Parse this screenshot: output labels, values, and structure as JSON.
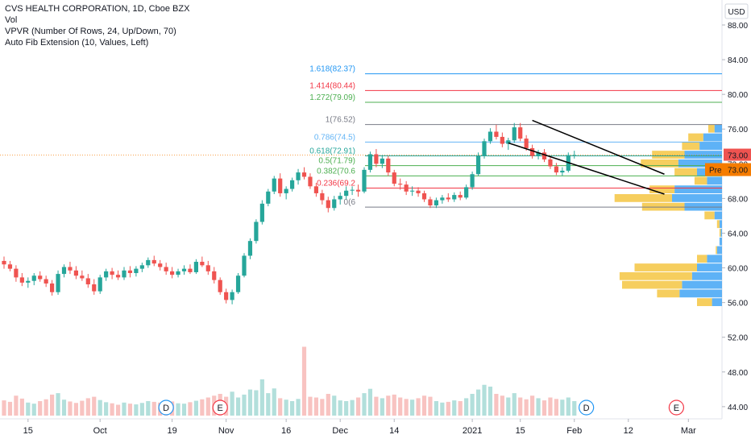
{
  "header": {
    "title": "CVS HEALTH CORPORATION, 1D, Cboe BZX",
    "indicators": [
      "Vol",
      "VPVR (Number Of Rows, 24, Up/Down, 70)",
      "Auto Fib Extension (10, Values, Left)"
    ]
  },
  "currency": "USD",
  "price_tags": {
    "last": "73.00",
    "pre_label": "Pre",
    "pre": "73.00"
  },
  "colors": {
    "up": "#26a69a",
    "down": "#ef5350",
    "vol_up": "#b2dfdb",
    "vol_down": "#f8c3c1",
    "vp_up": "#42a5f5",
    "vp_down": "#f5c542",
    "tag": "#f57c00"
  },
  "chart_data": {
    "type": "candlestick",
    "title": "CVS HEALTH CORPORATION, 1D, Cboe BZX",
    "ylim": [
      43,
      90
    ],
    "y_ticks": [
      "44.00",
      "48.00",
      "52.00",
      "56.00",
      "60.00",
      "64.00",
      "68.00",
      "72.00",
      "76.00",
      "80.00",
      "84.00",
      "88.00"
    ],
    "x_ticks": [
      "15",
      "Oct",
      "19",
      "Nov",
      "16",
      "Dec",
      "14",
      "2021",
      "15",
      "Feb",
      "12",
      "Mar"
    ],
    "fib_levels": [
      {
        "label": "1.618(82.37)",
        "value": 82.37,
        "color": "#2196f3"
      },
      {
        "label": "1.414(80.44)",
        "value": 80.44,
        "color": "#f23645"
      },
      {
        "label": "1.272(79.09)",
        "value": 79.09,
        "color": "#4caf50"
      },
      {
        "label": "1(76.52)",
        "value": 76.52,
        "color": "#787b86"
      },
      {
        "label": "0.786(74.5)",
        "value": 74.5,
        "color": "#64b5f6"
      },
      {
        "label": "0.618(72.91)",
        "value": 72.91,
        "color": "#26a69a"
      },
      {
        "label": "0.5(71.79)",
        "value": 71.79,
        "color": "#4caf50"
      },
      {
        "label": "0.382(70.6",
        "value": 70.6,
        "color": "#4caf50"
      },
      {
        "label": "0.236(69.2",
        "value": 69.2,
        "color": "#f23645"
      },
      {
        "label": "0(6",
        "value": 67.0,
        "color": "#787b86"
      }
    ],
    "event_markers": [
      {
        "label": "D",
        "x_index": 27
      },
      {
        "label": "E",
        "x_index": 36
      },
      {
        "label": "D",
        "x_index": 97
      },
      {
        "label": "E",
        "x_index": 112
      }
    ],
    "candles": [
      [
        60.8,
        61.3,
        59.9,
        60.4
      ],
      [
        60.4,
        60.8,
        59.6,
        59.9
      ],
      [
        59.9,
        60.3,
        58.4,
        58.9
      ],
      [
        58.9,
        59.4,
        57.9,
        58.3
      ],
      [
        58.3,
        58.9,
        57.7,
        58.5
      ],
      [
        58.5,
        59.4,
        58.0,
        59.1
      ],
      [
        59.1,
        59.6,
        58.4,
        58.7
      ],
      [
        58.7,
        59.1,
        57.8,
        58.2
      ],
      [
        58.2,
        58.6,
        56.8,
        57.2
      ],
      [
        57.2,
        59.7,
        56.9,
        59.3
      ],
      [
        59.3,
        60.4,
        58.9,
        60.1
      ],
      [
        60.1,
        60.7,
        59.3,
        59.7
      ],
      [
        59.7,
        60.2,
        58.7,
        59.1
      ],
      [
        59.1,
        59.7,
        58.5,
        58.8
      ],
      [
        58.8,
        59.3,
        57.7,
        58.1
      ],
      [
        58.1,
        58.7,
        56.9,
        57.3
      ],
      [
        57.3,
        59.2,
        57.0,
        58.9
      ],
      [
        58.9,
        59.9,
        58.5,
        59.6
      ],
      [
        59.6,
        60.0,
        58.7,
        59.2
      ],
      [
        59.2,
        59.7,
        58.6,
        58.9
      ],
      [
        58.9,
        60.1,
        58.6,
        59.7
      ],
      [
        59.7,
        60.2,
        58.9,
        59.4
      ],
      [
        59.4,
        60.2,
        59.0,
        59.9
      ],
      [
        59.9,
        60.6,
        59.5,
        60.3
      ],
      [
        60.3,
        61.2,
        60.0,
        60.9
      ],
      [
        60.9,
        61.4,
        60.2,
        60.5
      ],
      [
        60.5,
        60.9,
        59.7,
        60.1
      ],
      [
        60.1,
        60.6,
        59.2,
        59.6
      ],
      [
        59.6,
        60.1,
        58.8,
        59.2
      ],
      [
        59.2,
        59.9,
        58.9,
        59.6
      ],
      [
        59.6,
        60.3,
        59.2,
        59.9
      ],
      [
        59.9,
        60.4,
        59.3,
        59.5
      ],
      [
        59.5,
        61.0,
        59.3,
        60.7
      ],
      [
        60.7,
        61.3,
        60.1,
        60.3
      ],
      [
        60.3,
        60.8,
        59.2,
        59.6
      ],
      [
        59.6,
        60.1,
        58.2,
        58.6
      ],
      [
        58.6,
        58.9,
        56.9,
        57.2
      ],
      [
        57.2,
        57.6,
        55.9,
        56.3
      ],
      [
        56.3,
        57.5,
        55.8,
        57.2
      ],
      [
        57.2,
        59.4,
        57.0,
        59.1
      ],
      [
        59.1,
        61.7,
        58.9,
        61.4
      ],
      [
        61.4,
        63.4,
        61.0,
        63.1
      ],
      [
        63.1,
        65.6,
        62.8,
        65.3
      ],
      [
        65.3,
        67.8,
        65.0,
        67.4
      ],
      [
        67.4,
        69.1,
        67.1,
        68.8
      ],
      [
        68.8,
        70.6,
        68.5,
        70.3
      ],
      [
        70.3,
        70.9,
        68.2,
        68.6
      ],
      [
        68.6,
        69.4,
        67.9,
        69.1
      ],
      [
        69.1,
        70.4,
        68.8,
        70.1
      ],
      [
        70.1,
        71.4,
        69.6,
        71.0
      ],
      [
        71.0,
        71.6,
        70.2,
        70.5
      ],
      [
        70.5,
        70.9,
        69.1,
        69.4
      ],
      [
        69.4,
        69.8,
        68.2,
        68.6
      ],
      [
        68.6,
        69.0,
        67.3,
        67.8
      ],
      [
        67.8,
        68.2,
        66.4,
        66.9
      ],
      [
        66.9,
        68.3,
        66.6,
        67.9
      ],
      [
        67.9,
        68.7,
        67.3,
        68.3
      ],
      [
        68.3,
        69.4,
        67.9,
        68.9
      ],
      [
        68.9,
        69.4,
        68.4,
        69.0
      ],
      [
        69.0,
        69.6,
        68.2,
        68.8
      ],
      [
        68.8,
        71.6,
        68.6,
        71.3
      ],
      [
        71.3,
        73.4,
        71.0,
        73.1
      ],
      [
        73.1,
        73.7,
        71.6,
        72.0
      ],
      [
        72.0,
        73.0,
        71.5,
        72.6
      ],
      [
        72.6,
        72.9,
        70.6,
        71.0
      ],
      [
        71.0,
        71.3,
        69.4,
        69.7
      ],
      [
        69.7,
        70.3,
        69.0,
        69.6
      ],
      [
        69.6,
        70.0,
        68.4,
        68.8
      ],
      [
        68.8,
        69.4,
        68.3,
        68.9
      ],
      [
        68.9,
        69.3,
        68.2,
        68.6
      ],
      [
        68.6,
        68.9,
        67.6,
        67.9
      ],
      [
        67.9,
        68.2,
        66.9,
        67.2
      ],
      [
        67.2,
        68.1,
        66.9,
        67.8
      ],
      [
        67.8,
        68.4,
        67.4,
        68.1
      ],
      [
        68.1,
        68.6,
        67.6,
        67.9
      ],
      [
        67.9,
        68.7,
        67.6,
        68.4
      ],
      [
        68.4,
        68.8,
        67.8,
        68.1
      ],
      [
        68.1,
        69.6,
        67.9,
        69.3
      ],
      [
        69.3,
        71.1,
        69.0,
        70.8
      ],
      [
        70.8,
        73.3,
        70.6,
        72.9
      ],
      [
        72.9,
        74.9,
        72.6,
        74.6
      ],
      [
        74.6,
        76.1,
        74.3,
        75.7
      ],
      [
        75.7,
        76.5,
        74.8,
        75.1
      ],
      [
        75.1,
        75.6,
        73.9,
        74.3
      ],
      [
        74.3,
        75.0,
        73.6,
        74.7
      ],
      [
        74.7,
        76.7,
        74.4,
        76.2
      ],
      [
        76.2,
        76.7,
        74.6,
        74.9
      ],
      [
        74.9,
        75.3,
        73.5,
        73.8
      ],
      [
        73.8,
        74.2,
        72.6,
        72.9
      ],
      [
        72.9,
        73.6,
        72.5,
        73.3
      ],
      [
        73.3,
        73.7,
        72.2,
        72.5
      ],
      [
        72.5,
        72.9,
        71.4,
        71.7
      ],
      [
        71.7,
        72.1,
        70.7,
        71.0
      ],
      [
        71.0,
        71.6,
        70.6,
        71.2
      ],
      [
        71.2,
        73.3,
        71.0,
        73.0
      ],
      [
        73.0,
        73.5,
        72.6,
        73.0
      ]
    ],
    "volumes": [
      0.42,
      0.38,
      0.55,
      0.47,
      0.36,
      0.33,
      0.4,
      0.45,
      0.58,
      0.62,
      0.44,
      0.39,
      0.35,
      0.41,
      0.48,
      0.52,
      0.43,
      0.37,
      0.34,
      0.3,
      0.36,
      0.33,
      0.31,
      0.35,
      0.4,
      0.38,
      0.36,
      0.42,
      0.39,
      0.34,
      0.33,
      0.37,
      0.41,
      0.45,
      0.5,
      0.55,
      0.6,
      0.52,
      0.66,
      0.5,
      0.58,
      0.72,
      0.7,
      1.0,
      0.62,
      0.75,
      0.48,
      0.44,
      0.4,
      0.46,
      1.9,
      0.52,
      0.5,
      0.46,
      0.6,
      0.55,
      0.42,
      0.4,
      0.43,
      0.5,
      0.62,
      0.74,
      0.52,
      0.48,
      0.55,
      0.58,
      0.5,
      0.46,
      0.44,
      0.48,
      0.55,
      0.52,
      0.4,
      0.36,
      0.38,
      0.42,
      0.4,
      0.48,
      0.6,
      0.72,
      0.85,
      0.8,
      0.6,
      0.55,
      0.5,
      0.62,
      0.5,
      0.45,
      0.55,
      0.48,
      0.42,
      0.5,
      0.46,
      0.44,
      0.5,
      0.4
    ],
    "volume_profile": [
      {
        "price": 76,
        "up": 6,
        "down": 5
      },
      {
        "price": 75,
        "up": 15,
        "down": 12
      },
      {
        "price": 74,
        "up": 18,
        "down": 14
      },
      {
        "price": 73,
        "up": 30,
        "down": 26
      },
      {
        "price": 72,
        "up": 35,
        "down": 30
      },
      {
        "price": 71,
        "up": 20,
        "down": 18
      },
      {
        "price": 70,
        "up": 12,
        "down": 10
      },
      {
        "price": 69,
        "up": 38,
        "down": 20
      },
      {
        "price": 68,
        "up": 40,
        "down": 46
      },
      {
        "price": 67,
        "up": 30,
        "down": 34
      },
      {
        "price": 66,
        "up": 6,
        "down": 8
      },
      {
        "price": 65,
        "up": 2,
        "down": 2
      },
      {
        "price": 64,
        "up": 1,
        "down": 1
      },
      {
        "price": 63,
        "up": 2,
        "down": 0
      },
      {
        "price": 62,
        "up": 4,
        "down": 1
      },
      {
        "price": 61,
        "up": 12,
        "down": 8
      },
      {
        "price": 60,
        "up": 20,
        "down": 50
      },
      {
        "price": 59,
        "up": 24,
        "down": 58
      },
      {
        "price": 58,
        "up": 32,
        "down": 48
      },
      {
        "price": 57,
        "up": 34,
        "down": 18
      },
      {
        "price": 56,
        "up": 8,
        "down": 12
      }
    ],
    "trendlines": [
      {
        "x1": 88,
        "y1": 77.0,
        "x2": 110,
        "y2": 70.8,
        "color": "#000000"
      },
      {
        "x1": 84,
        "y1": 74.4,
        "x2": 110,
        "y2": 68.5,
        "color": "#000000"
      }
    ]
  }
}
